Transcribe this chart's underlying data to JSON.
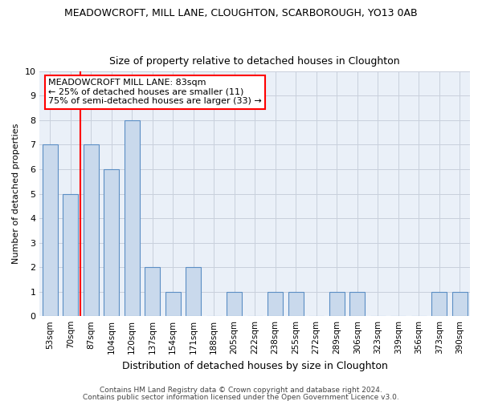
{
  "title": "MEADOWCROFT, MILL LANE, CLOUGHTON, SCARBOROUGH, YO13 0AB",
  "subtitle": "Size of property relative to detached houses in Cloughton",
  "xlabel": "Distribution of detached houses by size in Cloughton",
  "ylabel": "Number of detached properties",
  "categories": [
    "53sqm",
    "70sqm",
    "87sqm",
    "104sqm",
    "120sqm",
    "137sqm",
    "154sqm",
    "171sqm",
    "188sqm",
    "205sqm",
    "222sqm",
    "238sqm",
    "255sqm",
    "272sqm",
    "289sqm",
    "306sqm",
    "323sqm",
    "339sqm",
    "356sqm",
    "373sqm",
    "390sqm"
  ],
  "values": [
    7,
    5,
    7,
    6,
    8,
    2,
    1,
    2,
    0,
    1,
    0,
    1,
    1,
    0,
    1,
    1,
    0,
    0,
    0,
    1,
    1
  ],
  "bar_color": "#c9d9ec",
  "bar_edge_color": "#5b8ec4",
  "property_line_label": "MEADOWCROFT MILL LANE: 83sqm",
  "annotation_line1": "← 25% of detached houses are smaller (11)",
  "annotation_line2": "75% of semi-detached houses are larger (33) →",
  "annotation_box_color": "white",
  "annotation_box_edge_color": "red",
  "red_line_color": "red",
  "red_line_x": 1.5,
  "ylim": [
    0,
    10
  ],
  "yticks": [
    0,
    1,
    2,
    3,
    4,
    5,
    6,
    7,
    8,
    9,
    10
  ],
  "footer1": "Contains HM Land Registry data © Crown copyright and database right 2024.",
  "footer2": "Contains public sector information licensed under the Open Government Licence v3.0.",
  "bg_color": "white",
  "axes_bg_color": "#eaf0f8",
  "grid_color": "#c8d0dc",
  "title_fontsize": 9,
  "subtitle_fontsize": 9,
  "ylabel_fontsize": 8,
  "xlabel_fontsize": 9,
  "tick_fontsize": 7.5,
  "ytick_fontsize": 8,
  "footer_fontsize": 6.5,
  "annot_fontsize": 8,
  "bar_width": 0.75
}
